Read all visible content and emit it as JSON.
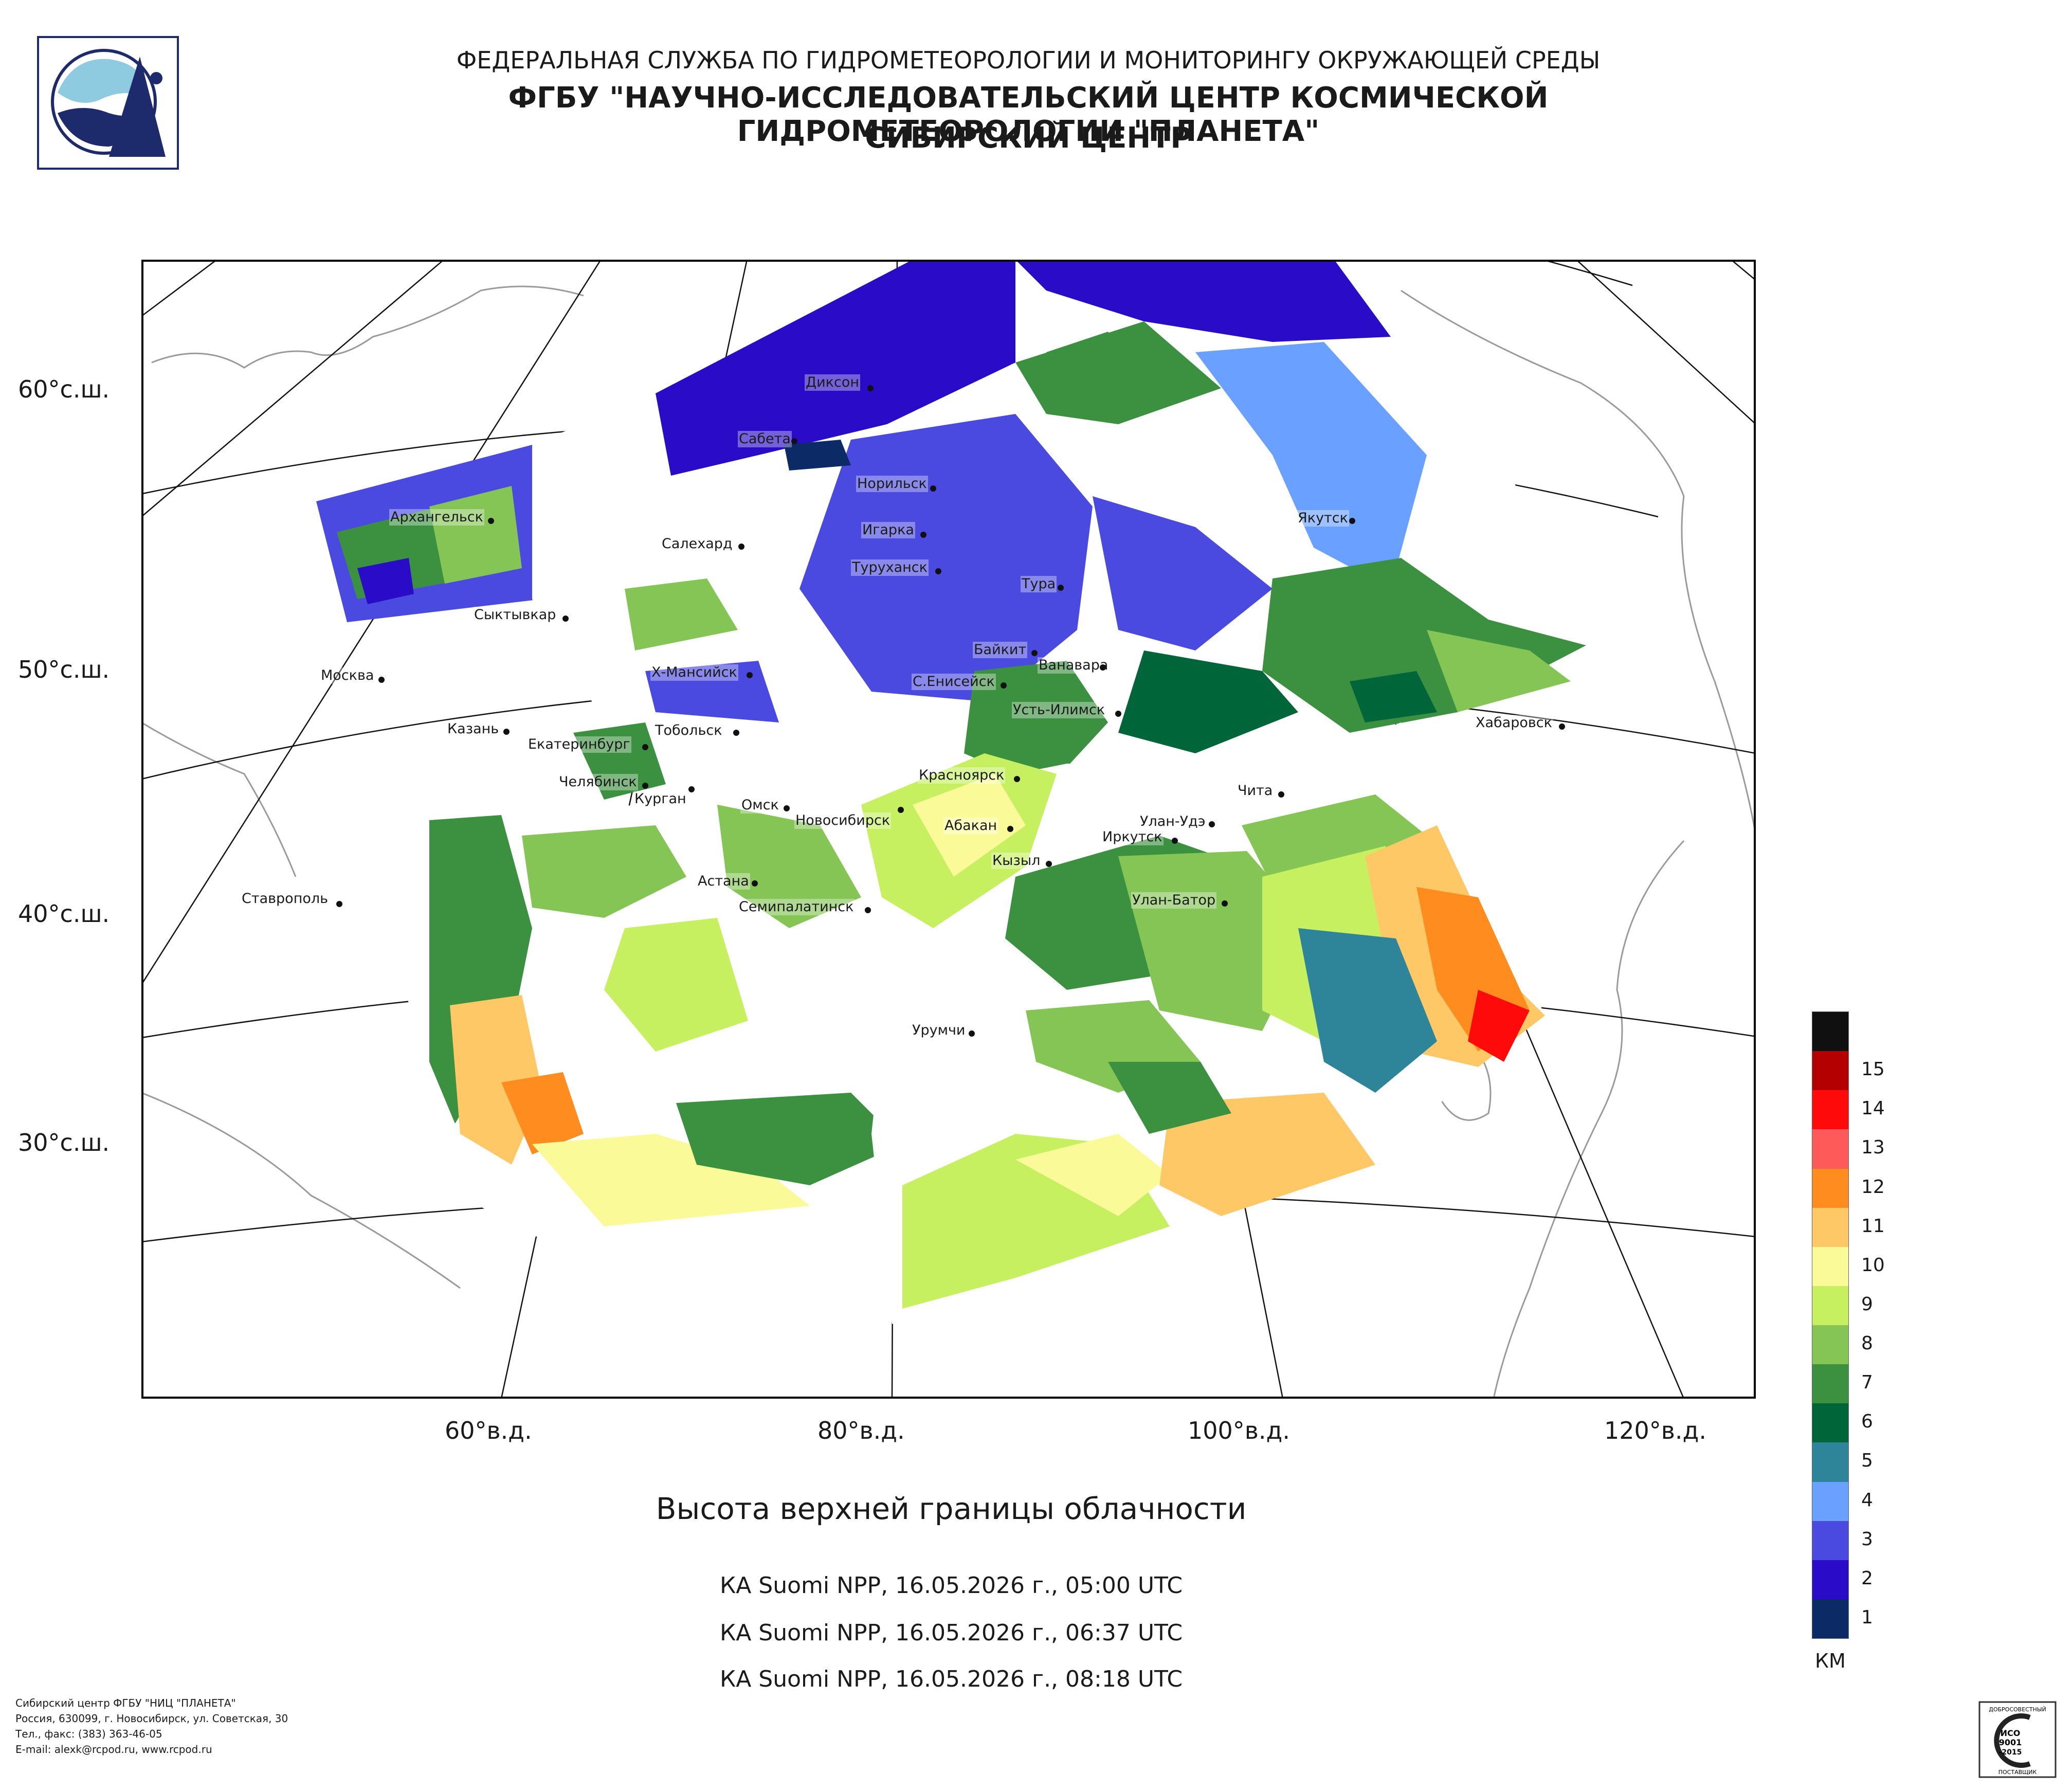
{
  "header": {
    "line1": "ФЕДЕРАЛЬНАЯ СЛУЖБА ПО ГИДРОМЕТЕОРОЛОГИИ И МОНИТОРИНГУ ОКРУЖАЮЩЕЙ СРЕДЫ",
    "line2": "ФГБУ \"НАУЧНО-ИССЛЕДОВАТЕЛЬСКИЙ ЦЕНТР КОСМИЧЕСКОЙ ГИДРОМЕТЕОРОЛОГИИ \"ПЛАНЕТА\"",
    "line3": "СИБИРСКИЙ ЦЕНТР"
  },
  "map": {
    "latitude_labels": [
      "60°с.ш.",
      "50°с.ш.",
      "40°с.ш.",
      "30°с.ш."
    ],
    "longitude_labels": [
      "60°в.д.",
      "80°в.д.",
      "100°в.д.",
      "120°в.д."
    ],
    "cities": [
      {
        "name": "Диксон"
      },
      {
        "name": "Сабета"
      },
      {
        "name": "Норильск"
      },
      {
        "name": "Игарка"
      },
      {
        "name": "Салехард"
      },
      {
        "name": "Туруханск"
      },
      {
        "name": "Тура"
      },
      {
        "name": "Якутск"
      },
      {
        "name": "Архангельск"
      },
      {
        "name": "Сыктывкар"
      },
      {
        "name": "Москва"
      },
      {
        "name": "Х-Мансийск"
      },
      {
        "name": "Байкит"
      },
      {
        "name": "Ванавара"
      },
      {
        "name": "С.Енисейск"
      },
      {
        "name": "Усть-Илимск"
      },
      {
        "name": "Хабаровск"
      },
      {
        "name": "Казань"
      },
      {
        "name": "Екатеринбург"
      },
      {
        "name": "Тобольск"
      },
      {
        "name": "Челябинск"
      },
      {
        "name": "Курган"
      },
      {
        "name": "Красноярск"
      },
      {
        "name": "Омск"
      },
      {
        "name": "Новосибирск"
      },
      {
        "name": "Абакан"
      },
      {
        "name": "Улан-Удэ"
      },
      {
        "name": "Чита"
      },
      {
        "name": "Иркутск"
      },
      {
        "name": "Кызыл"
      },
      {
        "name": "Астана"
      },
      {
        "name": "Ставрополь"
      },
      {
        "name": "Семипалатинск"
      },
      {
        "name": "Улан-Батор"
      },
      {
        "name": "Урумчи"
      }
    ],
    "title": "Высота верхней границы облачности",
    "passes": [
      "КА Suomi NPP, 16.05.2026 г., 05:00 UTC",
      "КА Suomi NPP, 16.05.2026 г., 06:37 UTC",
      "КА Suomi NPP, 16.05.2026 г., 08:18 UTC"
    ]
  },
  "colorbar": {
    "unit": "КМ",
    "ticks": [
      "1",
      "2",
      "3",
      "4",
      "5",
      "6",
      "7",
      "8",
      "9",
      "10",
      "11",
      "12",
      "13",
      "14",
      "15"
    ],
    "colors": [
      "#0b2a66",
      "#2a0bc8",
      "#4a4ae0",
      "#6aa0ff",
      "#2e8599",
      "#00663a",
      "#3c9140",
      "#85c555",
      "#c6f060",
      "#fafa98",
      "#ffc866",
      "#ff8c1e",
      "#ff5a5a",
      "#ff0a0a",
      "#b40000",
      "#101010"
    ]
  },
  "footer": {
    "line1": "Сибирский центр ФГБУ \"НИЦ \"ПЛАНЕТА\"",
    "line2": "Россия, 630099, г. Новосибирск, ул. Советская, 30",
    "line3": "Тел., факс: (383) 363-46-05",
    "line4": "E-mail: alexk@rcpod.ru, www.rcpod.ru"
  },
  "iso_badge": {
    "top": "ДОБРОСОВЕСТНЫЙ",
    "mid1": "ИСО",
    "mid2": "9001",
    "mid3": "-2015",
    "bottom": "ПОСТАВЩИК"
  }
}
